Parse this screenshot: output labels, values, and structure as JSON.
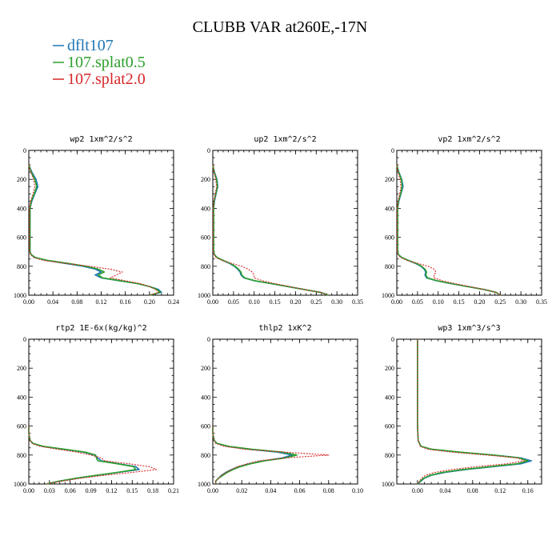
{
  "figure": {
    "title": "CLUBB VAR at260E,-17N"
  },
  "legend": [
    {
      "name": "dflt107",
      "color": "#1f77b4",
      "dash": "solid"
    },
    {
      "name": "107.splat0.5",
      "color": "#2ca02c",
      "dash": "solid"
    },
    {
      "name": "107.splat2.0",
      "color": "#d62728",
      "dash": "dotted"
    }
  ],
  "chart_data": [
    {
      "type": "line",
      "title": "wp2  1xm^2/s^2",
      "xlim": [
        0,
        0.24
      ],
      "xticks": [
        "0.00",
        "0.04",
        "0.08",
        "0.12",
        "0.16",
        "0.20",
        "0.24"
      ],
      "ylim": [
        1000,
        0
      ],
      "yticks": [
        "0",
        "200",
        "400",
        "600",
        "800",
        "1000"
      ],
      "y": [
        100,
        150,
        200,
        250,
        300,
        350,
        400,
        500,
        600,
        700,
        720,
        740,
        760,
        780,
        800,
        820,
        840,
        860,
        880,
        900,
        920,
        940,
        960,
        980,
        1000
      ],
      "series": [
        {
          "name": "dflt107",
          "values": [
            0.0,
            0.005,
            0.012,
            0.015,
            0.01,
            0.005,
            0.002,
            0.002,
            0.002,
            0.002,
            0.004,
            0.01,
            0.03,
            0.06,
            0.09,
            0.11,
            0.12,
            0.11,
            0.12,
            0.15,
            0.18,
            0.2,
            0.215,
            0.22,
            0.2
          ]
        },
        {
          "name": "107.splat0.5",
          "values": [
            0.0,
            0.004,
            0.01,
            0.013,
            0.009,
            0.004,
            0.002,
            0.002,
            0.002,
            0.002,
            0.004,
            0.011,
            0.032,
            0.065,
            0.095,
            0.115,
            0.125,
            0.115,
            0.122,
            0.152,
            0.18,
            0.2,
            0.212,
            0.218,
            0.2
          ]
        },
        {
          "name": "107.splat2.0",
          "values": [
            0.0,
            0.003,
            0.008,
            0.01,
            0.007,
            0.003,
            0.001,
            0.001,
            0.001,
            0.001,
            0.003,
            0.008,
            0.025,
            0.06,
            0.1,
            0.135,
            0.155,
            0.145,
            0.135,
            0.16,
            0.185,
            0.2,
            0.21,
            0.215,
            0.2
          ]
        }
      ]
    },
    {
      "type": "line",
      "title": "up2  1xm^2/s^2",
      "xlim": [
        0,
        0.35
      ],
      "xticks": [
        "0.00",
        "0.05",
        "0.10",
        "0.15",
        "0.20",
        "0.25",
        "0.30",
        "0.35"
      ],
      "ylim": [
        1000,
        0
      ],
      "yticks": [
        "0",
        "200",
        "400",
        "600",
        "800",
        "1000"
      ],
      "y": [
        100,
        150,
        200,
        250,
        300,
        350,
        400,
        500,
        600,
        700,
        720,
        740,
        760,
        780,
        800,
        820,
        840,
        860,
        880,
        900,
        920,
        940,
        960,
        980,
        1000
      ],
      "series": [
        {
          "name": "dflt107",
          "values": [
            0.0,
            0.004,
            0.01,
            0.012,
            0.008,
            0.004,
            0.002,
            0.002,
            0.002,
            0.002,
            0.004,
            0.01,
            0.025,
            0.04,
            0.052,
            0.06,
            0.066,
            0.068,
            0.075,
            0.1,
            0.14,
            0.18,
            0.22,
            0.26,
            0.28
          ]
        },
        {
          "name": "107.splat0.5",
          "values": [
            0.0,
            0.003,
            0.009,
            0.011,
            0.007,
            0.003,
            0.002,
            0.002,
            0.002,
            0.002,
            0.004,
            0.01,
            0.026,
            0.042,
            0.054,
            0.062,
            0.068,
            0.07,
            0.077,
            0.102,
            0.142,
            0.18,
            0.22,
            0.26,
            0.28
          ]
        },
        {
          "name": "107.splat2.0",
          "values": [
            0.0,
            0.003,
            0.007,
            0.009,
            0.006,
            0.003,
            0.001,
            0.001,
            0.001,
            0.001,
            0.003,
            0.008,
            0.022,
            0.045,
            0.07,
            0.085,
            0.095,
            0.1,
            0.1,
            0.12,
            0.15,
            0.185,
            0.22,
            0.26,
            0.28
          ]
        }
      ]
    },
    {
      "type": "line",
      "title": "vp2  1xm^2/s^2",
      "xlim": [
        0,
        0.35
      ],
      "xticks": [
        "0.00",
        "0.05",
        "0.10",
        "0.15",
        "0.20",
        "0.25",
        "0.30",
        "0.35"
      ],
      "ylim": [
        1000,
        0
      ],
      "yticks": [
        "0",
        "200",
        "400",
        "600",
        "800",
        "1000"
      ],
      "y": [
        100,
        150,
        200,
        250,
        300,
        350,
        400,
        500,
        600,
        700,
        720,
        740,
        760,
        780,
        800,
        820,
        840,
        860,
        880,
        900,
        920,
        940,
        960,
        980,
        1000
      ],
      "series": [
        {
          "name": "dflt107",
          "values": [
            0.0,
            0.005,
            0.012,
            0.015,
            0.01,
            0.005,
            0.002,
            0.002,
            0.002,
            0.002,
            0.004,
            0.012,
            0.028,
            0.045,
            0.058,
            0.066,
            0.07,
            0.068,
            0.072,
            0.095,
            0.13,
            0.17,
            0.21,
            0.24,
            0.25
          ]
        },
        {
          "name": "107.splat0.5",
          "values": [
            0.0,
            0.004,
            0.011,
            0.013,
            0.009,
            0.004,
            0.002,
            0.002,
            0.002,
            0.002,
            0.004,
            0.012,
            0.029,
            0.047,
            0.06,
            0.068,
            0.072,
            0.07,
            0.074,
            0.097,
            0.132,
            0.17,
            0.21,
            0.24,
            0.25
          ]
        },
        {
          "name": "107.splat2.0",
          "values": [
            0.0,
            0.003,
            0.008,
            0.01,
            0.007,
            0.003,
            0.001,
            0.001,
            0.001,
            0.001,
            0.003,
            0.009,
            0.025,
            0.05,
            0.075,
            0.09,
            0.095,
            0.09,
            0.09,
            0.11,
            0.14,
            0.175,
            0.21,
            0.24,
            0.25
          ]
        }
      ]
    },
    {
      "type": "line",
      "title": "rtp2  1E-6x(kg/kg)^2",
      "xlim": [
        0,
        0.21
      ],
      "xticks": [
        "0.00",
        "0.03",
        "0.06",
        "0.09",
        "0.12",
        "0.15",
        "0.18",
        "0.21"
      ],
      "ylim": [
        1000,
        0
      ],
      "yticks": [
        "0",
        "200",
        "400",
        "600",
        "800",
        "1000"
      ],
      "y": [
        600,
        650,
        700,
        720,
        740,
        760,
        780,
        800,
        820,
        840,
        860,
        880,
        900,
        920,
        940,
        960,
        980,
        1000
      ],
      "series": [
        {
          "name": "dflt107",
          "values": [
            0.0,
            0.0,
            0.002,
            0.006,
            0.02,
            0.05,
            0.08,
            0.095,
            0.1,
            0.105,
            0.13,
            0.155,
            0.16,
            0.13,
            0.1,
            0.07,
            0.045,
            0.025
          ]
        },
        {
          "name": "107.splat0.5",
          "values": [
            0.0,
            0.0,
            0.002,
            0.006,
            0.021,
            0.052,
            0.082,
            0.097,
            0.098,
            0.1,
            0.128,
            0.152,
            0.155,
            0.128,
            0.098,
            0.068,
            0.044,
            0.025
          ]
        },
        {
          "name": "107.splat2.0",
          "values": [
            0.0,
            0.0,
            0.002,
            0.005,
            0.016,
            0.042,
            0.07,
            0.09,
            0.105,
            0.11,
            0.145,
            0.175,
            0.185,
            0.15,
            0.11,
            0.075,
            0.048,
            0.026
          ]
        }
      ]
    },
    {
      "type": "line",
      "title": "thlp2  1xK^2",
      "xlim": [
        0,
        0.1
      ],
      "xticks": [
        "0.00",
        "0.02",
        "0.04",
        "0.06",
        "0.08",
        "0.10"
      ],
      "ylim": [
        1000,
        0
      ],
      "yticks": [
        "0",
        "200",
        "400",
        "600",
        "800",
        "1000"
      ],
      "y": [
        600,
        650,
        700,
        720,
        740,
        760,
        780,
        800,
        820,
        840,
        860,
        880,
        900,
        920,
        940,
        960,
        980,
        1000
      ],
      "series": [
        {
          "name": "dflt107",
          "values": [
            0.0,
            0.0,
            0.001,
            0.003,
            0.01,
            0.025,
            0.045,
            0.055,
            0.048,
            0.035,
            0.025,
            0.018,
            0.013,
            0.009,
            0.006,
            0.004,
            0.002,
            0.002
          ]
        },
        {
          "name": "107.splat0.5",
          "values": [
            0.0,
            0.0,
            0.001,
            0.003,
            0.011,
            0.027,
            0.048,
            0.058,
            0.05,
            0.036,
            0.026,
            0.019,
            0.014,
            0.01,
            0.007,
            0.004,
            0.002,
            0.002
          ]
        },
        {
          "name": "107.splat2.0",
          "values": [
            0.0,
            0.0,
            0.001,
            0.002,
            0.008,
            0.022,
            0.05,
            0.08,
            0.05,
            0.032,
            0.024,
            0.017,
            0.013,
            0.009,
            0.006,
            0.004,
            0.002,
            0.002
          ]
        }
      ]
    },
    {
      "type": "line",
      "title": "wp3  1xm^3/s^3",
      "xlim": [
        -0.03,
        0.18
      ],
      "xticks": [
        "0.00",
        "0.04",
        "0.08",
        "0.12",
        "0.16"
      ],
      "ylim": [
        1000,
        0
      ],
      "yticks": [
        "0",
        "200",
        "400",
        "600",
        "800",
        "1000"
      ],
      "y": [
        0,
        200,
        400,
        600,
        700,
        740,
        760,
        780,
        800,
        820,
        840,
        860,
        880,
        900,
        920,
        940,
        960,
        980,
        1000
      ],
      "series": [
        {
          "name": "dflt107",
          "values": [
            0.0,
            0.0,
            0.0,
            0.0,
            0.001,
            0.005,
            0.02,
            0.06,
            0.11,
            0.15,
            0.165,
            0.15,
            0.11,
            0.07,
            0.04,
            0.02,
            0.01,
            0.005,
            0.0
          ]
        },
        {
          "name": "107.splat0.5",
          "values": [
            0.0,
            0.0,
            0.0,
            0.0,
            0.001,
            0.005,
            0.021,
            0.062,
            0.11,
            0.148,
            0.16,
            0.145,
            0.105,
            0.065,
            0.036,
            0.018,
            0.009,
            0.004,
            0.0
          ]
        },
        {
          "name": "107.splat2.0",
          "values": [
            0.0,
            0.0,
            0.0,
            0.0,
            0.001,
            0.004,
            0.015,
            0.05,
            0.1,
            0.145,
            0.155,
            0.13,
            0.085,
            0.05,
            0.025,
            0.012,
            0.006,
            0.003,
            0.0
          ]
        }
      ]
    }
  ]
}
